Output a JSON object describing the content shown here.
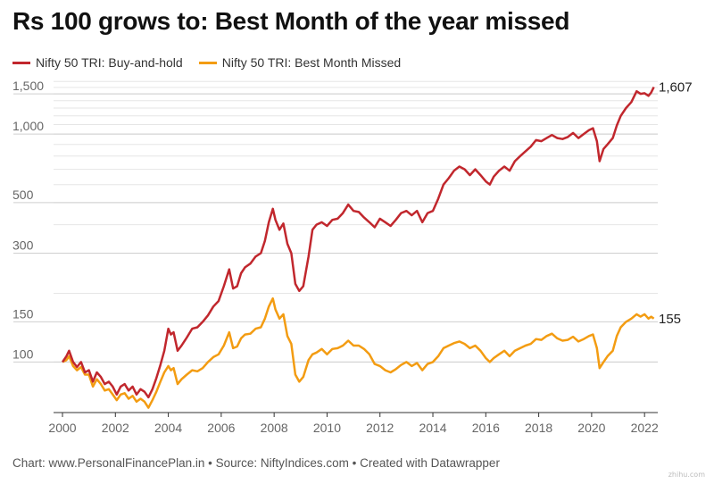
{
  "title": "Rs 100 grows to: Best Month of the year missed",
  "footer": "Chart: www.PersonalFinancePlan.in • Source: NiftyIndices.com • Created with Datawrapper",
  "watermark": "zhihu.com",
  "chart_data": {
    "type": "line",
    "title": "Rs 100 grows to: Best Month of the year missed",
    "yscale": "log",
    "ylim": [
      60,
      1750
    ],
    "xlim": [
      2000,
      2022.5
    ],
    "yticks": [
      {
        "value": 1500,
        "label": "1,500"
      },
      {
        "value": 1000,
        "label": "1,000"
      },
      {
        "value": 500,
        "label": "500"
      },
      {
        "value": 300,
        "label": "300"
      },
      {
        "value": 150,
        "label": "150"
      },
      {
        "value": 100,
        "label": "100"
      }
    ],
    "minor_grid_step": 100,
    "xticks": [
      2000,
      2002,
      2004,
      2006,
      2008,
      2010,
      2012,
      2014,
      2016,
      2018,
      2020,
      2022
    ],
    "grid": true,
    "legend_position": "top-left",
    "series": [
      {
        "name": "Nifty 50 TRI: Buy-and-hold",
        "color": "#c1272d",
        "end_label": "1,607",
        "points": [
          [
            2000.0,
            100
          ],
          [
            2000.15,
            106
          ],
          [
            2000.25,
            112
          ],
          [
            2000.4,
            100
          ],
          [
            2000.55,
            95
          ],
          [
            2000.7,
            100
          ],
          [
            2000.85,
            90
          ],
          [
            2001.0,
            92
          ],
          [
            2001.15,
            82
          ],
          [
            2001.3,
            90
          ],
          [
            2001.45,
            86
          ],
          [
            2001.6,
            80
          ],
          [
            2001.75,
            82
          ],
          [
            2001.9,
            78
          ],
          [
            2002.05,
            72
          ],
          [
            2002.2,
            78
          ],
          [
            2002.35,
            80
          ],
          [
            2002.5,
            75
          ],
          [
            2002.65,
            78
          ],
          [
            2002.8,
            72
          ],
          [
            2002.95,
            76
          ],
          [
            2003.1,
            74
          ],
          [
            2003.25,
            70
          ],
          [
            2003.4,
            76
          ],
          [
            2003.55,
            85
          ],
          [
            2003.7,
            97
          ],
          [
            2003.85,
            112
          ],
          [
            2004.0,
            140
          ],
          [
            2004.1,
            132
          ],
          [
            2004.2,
            135
          ],
          [
            2004.35,
            112
          ],
          [
            2004.5,
            118
          ],
          [
            2004.7,
            128
          ],
          [
            2004.9,
            140
          ],
          [
            2005.1,
            142
          ],
          [
            2005.3,
            150
          ],
          [
            2005.5,
            160
          ],
          [
            2005.7,
            175
          ],
          [
            2005.9,
            185
          ],
          [
            2006.1,
            215
          ],
          [
            2006.3,
            255
          ],
          [
            2006.45,
            210
          ],
          [
            2006.6,
            215
          ],
          [
            2006.75,
            245
          ],
          [
            2006.9,
            260
          ],
          [
            2007.1,
            270
          ],
          [
            2007.3,
            290
          ],
          [
            2007.5,
            300
          ],
          [
            2007.65,
            340
          ],
          [
            2007.8,
            410
          ],
          [
            2007.95,
            470
          ],
          [
            2008.05,
            420
          ],
          [
            2008.2,
            380
          ],
          [
            2008.35,
            405
          ],
          [
            2008.5,
            330
          ],
          [
            2008.65,
            300
          ],
          [
            2008.8,
            220
          ],
          [
            2008.95,
            205
          ],
          [
            2009.1,
            215
          ],
          [
            2009.3,
            290
          ],
          [
            2009.45,
            380
          ],
          [
            2009.6,
            400
          ],
          [
            2009.8,
            410
          ],
          [
            2010.0,
            395
          ],
          [
            2010.2,
            420
          ],
          [
            2010.4,
            425
          ],
          [
            2010.6,
            450
          ],
          [
            2010.8,
            490
          ],
          [
            2011.0,
            460
          ],
          [
            2011.2,
            455
          ],
          [
            2011.4,
            430
          ],
          [
            2011.6,
            410
          ],
          [
            2011.8,
            390
          ],
          [
            2012.0,
            425
          ],
          [
            2012.2,
            410
          ],
          [
            2012.4,
            395
          ],
          [
            2012.6,
            420
          ],
          [
            2012.8,
            450
          ],
          [
            2013.0,
            460
          ],
          [
            2013.2,
            440
          ],
          [
            2013.4,
            460
          ],
          [
            2013.6,
            410
          ],
          [
            2013.8,
            450
          ],
          [
            2014.0,
            460
          ],
          [
            2014.2,
            520
          ],
          [
            2014.4,
            600
          ],
          [
            2014.6,
            640
          ],
          [
            2014.8,
            690
          ],
          [
            2015.0,
            720
          ],
          [
            2015.2,
            700
          ],
          [
            2015.4,
            660
          ],
          [
            2015.6,
            700
          ],
          [
            2015.8,
            660
          ],
          [
            2016.0,
            620
          ],
          [
            2016.15,
            600
          ],
          [
            2016.3,
            650
          ],
          [
            2016.5,
            690
          ],
          [
            2016.7,
            720
          ],
          [
            2016.9,
            690
          ],
          [
            2017.1,
            760
          ],
          [
            2017.3,
            800
          ],
          [
            2017.5,
            840
          ],
          [
            2017.7,
            880
          ],
          [
            2017.9,
            940
          ],
          [
            2018.1,
            930
          ],
          [
            2018.3,
            960
          ],
          [
            2018.5,
            990
          ],
          [
            2018.7,
            960
          ],
          [
            2018.9,
            950
          ],
          [
            2019.1,
            970
          ],
          [
            2019.3,
            1010
          ],
          [
            2019.5,
            960
          ],
          [
            2019.7,
            1000
          ],
          [
            2019.9,
            1040
          ],
          [
            2020.05,
            1060
          ],
          [
            2020.2,
            930
          ],
          [
            2020.3,
            760
          ],
          [
            2020.45,
            860
          ],
          [
            2020.6,
            900
          ],
          [
            2020.8,
            960
          ],
          [
            2020.95,
            1090
          ],
          [
            2021.1,
            1200
          ],
          [
            2021.3,
            1300
          ],
          [
            2021.5,
            1380
          ],
          [
            2021.7,
            1540
          ],
          [
            2021.85,
            1500
          ],
          [
            2022.0,
            1510
          ],
          [
            2022.15,
            1470
          ],
          [
            2022.25,
            1520
          ],
          [
            2022.35,
            1607
          ]
        ]
      },
      {
        "name": "Nifty 50 TRI: Best Month Missed",
        "color": "#f39c12",
        "end_label": "155",
        "points": [
          [
            2000.0,
            100
          ],
          [
            2000.15,
            102
          ],
          [
            2000.25,
            106
          ],
          [
            2000.4,
            96
          ],
          [
            2000.55,
            92
          ],
          [
            2000.7,
            95
          ],
          [
            2000.85,
            88
          ],
          [
            2001.0,
            88
          ],
          [
            2001.15,
            78
          ],
          [
            2001.3,
            84
          ],
          [
            2001.45,
            80
          ],
          [
            2001.6,
            75
          ],
          [
            2001.75,
            76
          ],
          [
            2001.9,
            72
          ],
          [
            2002.05,
            68
          ],
          [
            2002.2,
            72
          ],
          [
            2002.35,
            73
          ],
          [
            2002.5,
            69
          ],
          [
            2002.65,
            71
          ],
          [
            2002.8,
            67
          ],
          [
            2002.95,
            69
          ],
          [
            2003.1,
            67
          ],
          [
            2003.25,
            63
          ],
          [
            2003.4,
            68
          ],
          [
            2003.55,
            74
          ],
          [
            2003.7,
            82
          ],
          [
            2003.85,
            90
          ],
          [
            2004.0,
            96
          ],
          [
            2004.1,
            92
          ],
          [
            2004.2,
            94
          ],
          [
            2004.35,
            80
          ],
          [
            2004.5,
            84
          ],
          [
            2004.7,
            88
          ],
          [
            2004.9,
            92
          ],
          [
            2005.1,
            91
          ],
          [
            2005.3,
            94
          ],
          [
            2005.5,
            100
          ],
          [
            2005.7,
            105
          ],
          [
            2005.9,
            108
          ],
          [
            2006.1,
            118
          ],
          [
            2006.3,
            135
          ],
          [
            2006.45,
            115
          ],
          [
            2006.6,
            117
          ],
          [
            2006.75,
            127
          ],
          [
            2006.9,
            132
          ],
          [
            2007.1,
            133
          ],
          [
            2007.3,
            140
          ],
          [
            2007.5,
            142
          ],
          [
            2007.65,
            155
          ],
          [
            2007.8,
            175
          ],
          [
            2007.95,
            190
          ],
          [
            2008.05,
            170
          ],
          [
            2008.2,
            155
          ],
          [
            2008.35,
            162
          ],
          [
            2008.5,
            130
          ],
          [
            2008.65,
            120
          ],
          [
            2008.8,
            88
          ],
          [
            2008.95,
            82
          ],
          [
            2009.1,
            86
          ],
          [
            2009.3,
            102
          ],
          [
            2009.45,
            108
          ],
          [
            2009.6,
            110
          ],
          [
            2009.8,
            114
          ],
          [
            2010.0,
            108
          ],
          [
            2010.2,
            114
          ],
          [
            2010.4,
            115
          ],
          [
            2010.6,
            118
          ],
          [
            2010.8,
            124
          ],
          [
            2011.0,
            118
          ],
          [
            2011.2,
            118
          ],
          [
            2011.4,
            114
          ],
          [
            2011.6,
            108
          ],
          [
            2011.8,
            98
          ],
          [
            2012.0,
            96
          ],
          [
            2012.2,
            92
          ],
          [
            2012.4,
            90
          ],
          [
            2012.6,
            93
          ],
          [
            2012.8,
            97
          ],
          [
            2013.0,
            100
          ],
          [
            2013.2,
            96
          ],
          [
            2013.4,
            99
          ],
          [
            2013.6,
            92
          ],
          [
            2013.8,
            98
          ],
          [
            2014.0,
            100
          ],
          [
            2014.2,
            106
          ],
          [
            2014.4,
            115
          ],
          [
            2014.6,
            118
          ],
          [
            2014.8,
            121
          ],
          [
            2015.0,
            123
          ],
          [
            2015.2,
            120
          ],
          [
            2015.4,
            115
          ],
          [
            2015.6,
            118
          ],
          [
            2015.8,
            112
          ],
          [
            2016.0,
            104
          ],
          [
            2016.15,
            100
          ],
          [
            2016.3,
            104
          ],
          [
            2016.5,
            108
          ],
          [
            2016.7,
            112
          ],
          [
            2016.9,
            106
          ],
          [
            2017.1,
            112
          ],
          [
            2017.3,
            115
          ],
          [
            2017.5,
            118
          ],
          [
            2017.7,
            120
          ],
          [
            2017.9,
            126
          ],
          [
            2018.1,
            125
          ],
          [
            2018.3,
            130
          ],
          [
            2018.5,
            133
          ],
          [
            2018.7,
            127
          ],
          [
            2018.9,
            124
          ],
          [
            2019.1,
            125
          ],
          [
            2019.3,
            129
          ],
          [
            2019.5,
            123
          ],
          [
            2019.7,
            126
          ],
          [
            2019.9,
            130
          ],
          [
            2020.05,
            132
          ],
          [
            2020.2,
            115
          ],
          [
            2020.3,
            94
          ],
          [
            2020.45,
            100
          ],
          [
            2020.6,
            106
          ],
          [
            2020.8,
            112
          ],
          [
            2020.95,
            130
          ],
          [
            2021.1,
            142
          ],
          [
            2021.3,
            150
          ],
          [
            2021.5,
            155
          ],
          [
            2021.7,
            162
          ],
          [
            2021.85,
            158
          ],
          [
            2022.0,
            162
          ],
          [
            2022.15,
            155
          ],
          [
            2022.25,
            158
          ],
          [
            2022.35,
            155
          ]
        ]
      }
    ]
  }
}
